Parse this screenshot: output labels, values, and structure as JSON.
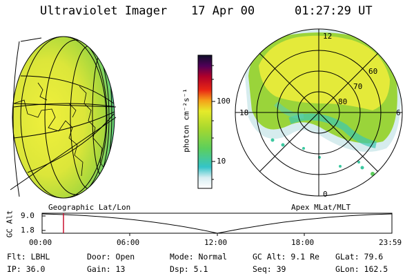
{
  "header": {
    "instrument": "Ultraviolet Imager",
    "date": "17 Apr 00",
    "time": "01:27:29 UT"
  },
  "colorbar": {
    "unit_label": "photon cm⁻²s⁻¹",
    "ticks": [
      "100",
      "10"
    ]
  },
  "polar_plot": {
    "mlt_labels": {
      "top": "12",
      "left": "18",
      "right": "6",
      "bottom": "0"
    },
    "mlat_labels": [
      "60",
      "70",
      "80"
    ]
  },
  "timeline": {
    "left_caption": "Geographic Lat/Lon",
    "right_caption": "Apex MLat/MLT",
    "y_axis_label": "GC Alt",
    "y_ticks": [
      "9.0",
      "1.8"
    ],
    "x_ticks": [
      "00:00",
      "06:00",
      "12:00",
      "18:00",
      "23:59"
    ],
    "marker_time": "01:27"
  },
  "status": {
    "filter": "Flt: LBHL",
    "door": "Door: Open",
    "mode": "Mode: Normal",
    "gc_alt": "GC Alt: 9.1 Re",
    "glat": "GLat:  79.6",
    "ip": "IP: 36.0",
    "gain": "Gain: 13",
    "dsp": "Dsp:    5.1",
    "seq": "Seq: 39",
    "glon": "GLon: 162.5"
  },
  "colors": {
    "yellow": "#e8ec3a",
    "green": "#9ad43a",
    "teal": "#3cc8b0",
    "pale": "#d8ecee",
    "marker": "#c8102e"
  }
}
